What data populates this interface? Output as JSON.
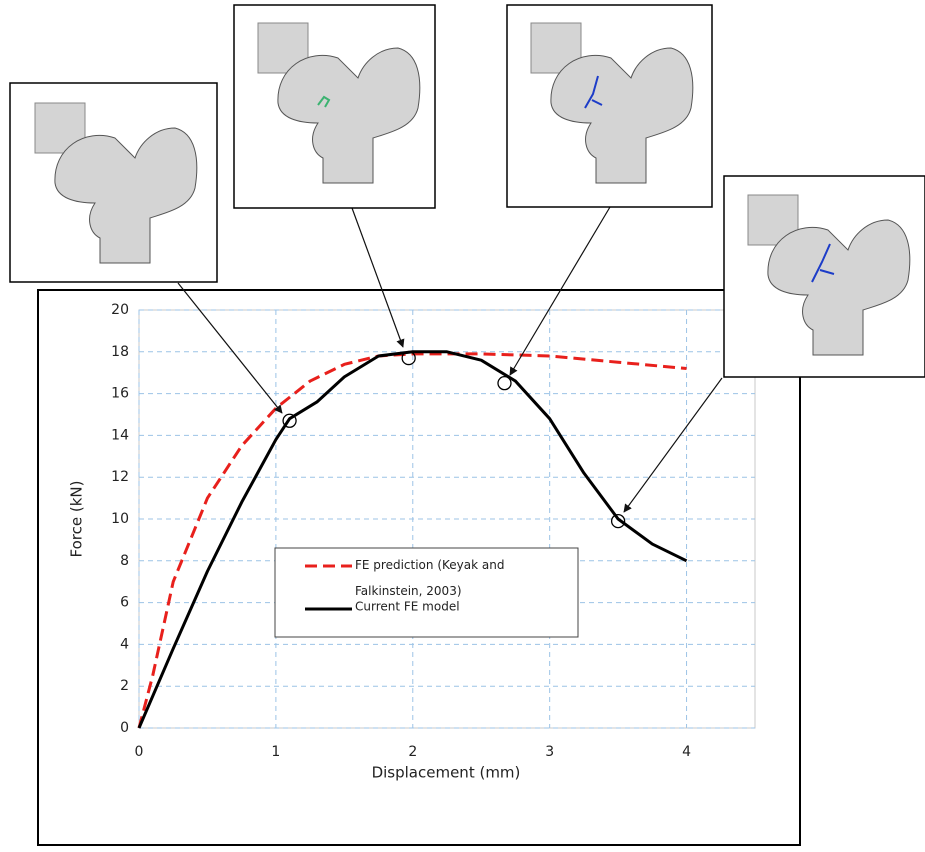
{
  "chart_data": {
    "type": "line",
    "x_label": "Displacement (mm)",
    "y_label": "Force (kN)",
    "xlim": [
      0,
      4.5
    ],
    "xticks": [
      0,
      1,
      2,
      3,
      4
    ],
    "ylim": [
      0,
      20
    ],
    "yticks": [
      0,
      2,
      4,
      6,
      8,
      10,
      12,
      14,
      16,
      18,
      20
    ],
    "grid": true,
    "series": [
      {
        "name": "FE prediction (Keyak and Falkinstein, 2003)",
        "color": "#e8201c",
        "dashed": true,
        "x": [
          0,
          0.1,
          0.25,
          0.5,
          0.75,
          1,
          1.25,
          1.5,
          1.75,
          2,
          2.5,
          3,
          3.5,
          4
        ],
        "values": [
          0,
          2.5,
          7,
          11,
          13.5,
          15.3,
          16.6,
          17.4,
          17.8,
          17.9,
          17.9,
          17.8,
          17.5,
          17.2
        ]
      },
      {
        "name": "Current FE model",
        "color": "#000000",
        "dashed": false,
        "x": [
          0,
          0.25,
          0.5,
          0.75,
          1,
          1.1,
          1.3,
          1.5,
          1.75,
          2,
          2.25,
          2.5,
          2.75,
          3,
          3.25,
          3.5,
          3.75,
          4
        ],
        "values": [
          0,
          3.8,
          7.5,
          10.8,
          13.8,
          14.8,
          15.6,
          16.8,
          17.8,
          18,
          18,
          17.6,
          16.6,
          14.8,
          12.2,
          10,
          8.8,
          8
        ]
      }
    ],
    "markers": {
      "x": [
        1.1,
        1.97,
        2.67,
        3.5
      ],
      "values": [
        14.7,
        17.7,
        16.5,
        9.9
      ]
    }
  }
}
